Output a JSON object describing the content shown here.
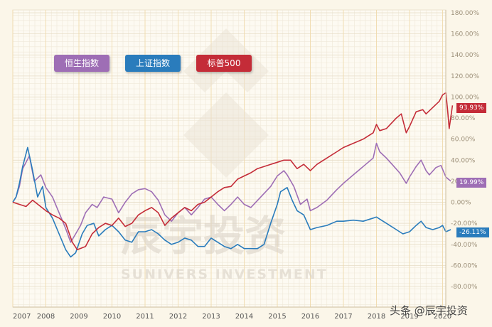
{
  "chart_data": {
    "type": "line",
    "ylim": [
      -80,
      180
    ],
    "y_ticks": [
      "180.00%",
      "160.00%",
      "140.00%",
      "120.00%",
      "100.00%",
      "80.00%",
      "60.00%",
      "40.00%",
      "20.00%",
      "0.00%",
      "-20.00%",
      "-40.00%",
      "-60.00%",
      "-80.00%"
    ],
    "x_ticks": [
      "2007",
      "2008",
      "2009",
      "2010",
      "2011",
      "2012",
      "2013",
      "2014",
      "2015",
      "2016",
      "2017",
      "2018",
      "2019",
      "2020"
    ],
    "xlim": [
      2007.0,
      2020.3
    ],
    "grid": true,
    "y_axis_position": "right",
    "series": [
      {
        "name": "恒生指数",
        "color": "#9e6eb5",
        "end_label": "19.99%",
        "points": [
          [
            2007.0,
            0
          ],
          [
            2007.1,
            5
          ],
          [
            2007.2,
            15
          ],
          [
            2007.3,
            32
          ],
          [
            2007.5,
            44
          ],
          [
            2007.65,
            20
          ],
          [
            2007.85,
            26
          ],
          [
            2008.0,
            14
          ],
          [
            2008.2,
            5
          ],
          [
            2008.4,
            -10
          ],
          [
            2008.6,
            -25
          ],
          [
            2008.75,
            -38
          ],
          [
            2008.9,
            -30
          ],
          [
            2009.05,
            -22
          ],
          [
            2009.2,
            -10
          ],
          [
            2009.4,
            -2
          ],
          [
            2009.55,
            -5
          ],
          [
            2009.75,
            5
          ],
          [
            2010.0,
            3
          ],
          [
            2010.2,
            -10
          ],
          [
            2010.4,
            0
          ],
          [
            2010.6,
            8
          ],
          [
            2010.8,
            12
          ],
          [
            2011.0,
            13
          ],
          [
            2011.2,
            10
          ],
          [
            2011.4,
            2
          ],
          [
            2011.6,
            -12
          ],
          [
            2011.8,
            -18
          ],
          [
            2012.0,
            -10
          ],
          [
            2012.2,
            -5
          ],
          [
            2012.4,
            -12
          ],
          [
            2012.6,
            -5
          ],
          [
            2012.8,
            3
          ],
          [
            2013.0,
            5
          ],
          [
            2013.2,
            -2
          ],
          [
            2013.4,
            -8
          ],
          [
            2013.6,
            -2
          ],
          [
            2013.8,
            5
          ],
          [
            2014.0,
            -2
          ],
          [
            2014.2,
            -5
          ],
          [
            2014.5,
            5
          ],
          [
            2014.8,
            15
          ],
          [
            2015.0,
            25
          ],
          [
            2015.2,
            30
          ],
          [
            2015.3,
            26
          ],
          [
            2015.5,
            15
          ],
          [
            2015.7,
            -2
          ],
          [
            2015.9,
            3
          ],
          [
            2016.0,
            -8
          ],
          [
            2016.2,
            -5
          ],
          [
            2016.5,
            2
          ],
          [
            2016.8,
            12
          ],
          [
            2017.0,
            18
          ],
          [
            2017.3,
            26
          ],
          [
            2017.6,
            34
          ],
          [
            2017.9,
            42
          ],
          [
            2018.0,
            56
          ],
          [
            2018.1,
            48
          ],
          [
            2018.3,
            42
          ],
          [
            2018.5,
            35
          ],
          [
            2018.7,
            28
          ],
          [
            2018.9,
            18
          ],
          [
            2019.0,
            24
          ],
          [
            2019.2,
            34
          ],
          [
            2019.35,
            40
          ],
          [
            2019.5,
            30
          ],
          [
            2019.6,
            26
          ],
          [
            2019.8,
            33
          ],
          [
            2019.95,
            35
          ],
          [
            2020.1,
            24
          ],
          [
            2020.25,
            20
          ]
        ]
      },
      {
        "name": "上证指数",
        "color": "#2a7cbc",
        "end_label": "-26.11%",
        "points": [
          [
            2007.0,
            0
          ],
          [
            2007.1,
            5
          ],
          [
            2007.2,
            18
          ],
          [
            2007.3,
            34
          ],
          [
            2007.45,
            52
          ],
          [
            2007.6,
            30
          ],
          [
            2007.75,
            5
          ],
          [
            2007.9,
            15
          ],
          [
            2008.0,
            -5
          ],
          [
            2008.2,
            -15
          ],
          [
            2008.4,
            -30
          ],
          [
            2008.6,
            -45
          ],
          [
            2008.75,
            -52
          ],
          [
            2008.9,
            -48
          ],
          [
            2009.1,
            -30
          ],
          [
            2009.25,
            -22
          ],
          [
            2009.45,
            -20
          ],
          [
            2009.6,
            -32
          ],
          [
            2009.8,
            -26
          ],
          [
            2010.0,
            -22
          ],
          [
            2010.2,
            -28
          ],
          [
            2010.4,
            -36
          ],
          [
            2010.6,
            -38
          ],
          [
            2010.8,
            -28
          ],
          [
            2011.0,
            -28
          ],
          [
            2011.2,
            -26
          ],
          [
            2011.4,
            -30
          ],
          [
            2011.6,
            -36
          ],
          [
            2011.8,
            -40
          ],
          [
            2012.0,
            -38
          ],
          [
            2012.2,
            -34
          ],
          [
            2012.4,
            -36
          ],
          [
            2012.6,
            -42
          ],
          [
            2012.8,
            -42
          ],
          [
            2013.0,
            -34
          ],
          [
            2013.2,
            -38
          ],
          [
            2013.4,
            -42
          ],
          [
            2013.6,
            -44
          ],
          [
            2013.8,
            -40
          ],
          [
            2014.0,
            -44
          ],
          [
            2014.2,
            -44
          ],
          [
            2014.4,
            -44
          ],
          [
            2014.6,
            -40
          ],
          [
            2014.8,
            -20
          ],
          [
            2015.0,
            -2
          ],
          [
            2015.1,
            10
          ],
          [
            2015.3,
            14
          ],
          [
            2015.45,
            2
          ],
          [
            2015.6,
            -8
          ],
          [
            2015.8,
            -12
          ],
          [
            2016.0,
            -26
          ],
          [
            2016.2,
            -24
          ],
          [
            2016.5,
            -22
          ],
          [
            2016.8,
            -18
          ],
          [
            2017.0,
            -18
          ],
          [
            2017.3,
            -17
          ],
          [
            2017.6,
            -18
          ],
          [
            2017.9,
            -15
          ],
          [
            2018.0,
            -14
          ],
          [
            2018.2,
            -18
          ],
          [
            2018.4,
            -22
          ],
          [
            2018.6,
            -26
          ],
          [
            2018.8,
            -30
          ],
          [
            2019.0,
            -28
          ],
          [
            2019.2,
            -22
          ],
          [
            2019.35,
            -18
          ],
          [
            2019.5,
            -24
          ],
          [
            2019.7,
            -26
          ],
          [
            2019.9,
            -24
          ],
          [
            2020.0,
            -22
          ],
          [
            2020.1,
            -28
          ],
          [
            2020.25,
            -26
          ]
        ]
      },
      {
        "name": "标普500",
        "color": "#c42c38",
        "end_label": "93.93%",
        "points": [
          [
            2007.0,
            0
          ],
          [
            2007.2,
            -2
          ],
          [
            2007.4,
            -4
          ],
          [
            2007.6,
            2
          ],
          [
            2007.8,
            -3
          ],
          [
            2008.0,
            -8
          ],
          [
            2008.2,
            -12
          ],
          [
            2008.4,
            -15
          ],
          [
            2008.6,
            -20
          ],
          [
            2008.8,
            -38
          ],
          [
            2008.95,
            -45
          ],
          [
            2009.2,
            -42
          ],
          [
            2009.4,
            -30
          ],
          [
            2009.6,
            -24
          ],
          [
            2009.8,
            -20
          ],
          [
            2010.0,
            -22
          ],
          [
            2010.2,
            -15
          ],
          [
            2010.4,
            -23
          ],
          [
            2010.6,
            -20
          ],
          [
            2010.8,
            -12
          ],
          [
            2011.0,
            -8
          ],
          [
            2011.2,
            -5
          ],
          [
            2011.4,
            -10
          ],
          [
            2011.6,
            -22
          ],
          [
            2011.8,
            -15
          ],
          [
            2012.0,
            -10
          ],
          [
            2012.2,
            -5
          ],
          [
            2012.4,
            -8
          ],
          [
            2012.6,
            -2
          ],
          [
            2012.8,
            0
          ],
          [
            2013.0,
            5
          ],
          [
            2013.2,
            10
          ],
          [
            2013.4,
            14
          ],
          [
            2013.6,
            15
          ],
          [
            2013.8,
            22
          ],
          [
            2014.0,
            25
          ],
          [
            2014.2,
            28
          ],
          [
            2014.4,
            32
          ],
          [
            2014.6,
            34
          ],
          [
            2014.8,
            36
          ],
          [
            2015.0,
            38
          ],
          [
            2015.2,
            40
          ],
          [
            2015.4,
            40
          ],
          [
            2015.6,
            32
          ],
          [
            2015.8,
            36
          ],
          [
            2016.0,
            30
          ],
          [
            2016.2,
            36
          ],
          [
            2016.5,
            42
          ],
          [
            2016.8,
            48
          ],
          [
            2017.0,
            52
          ],
          [
            2017.3,
            56
          ],
          [
            2017.6,
            60
          ],
          [
            2017.9,
            66
          ],
          [
            2018.0,
            74
          ],
          [
            2018.1,
            68
          ],
          [
            2018.3,
            70
          ],
          [
            2018.6,
            80
          ],
          [
            2018.75,
            84
          ],
          [
            2018.9,
            66
          ],
          [
            2019.0,
            72
          ],
          [
            2019.2,
            86
          ],
          [
            2019.4,
            88
          ],
          [
            2019.5,
            84
          ],
          [
            2019.7,
            90
          ],
          [
            2019.9,
            96
          ],
          [
            2020.0,
            102
          ],
          [
            2020.1,
            104
          ],
          [
            2020.15,
            88
          ],
          [
            2020.2,
            70
          ],
          [
            2020.3,
            92
          ]
        ]
      }
    ]
  },
  "watermark": {
    "brand_cn": "辰宇投资",
    "brand_en": "SUNIVERS INVESTMENT"
  },
  "source": "头条 @辰宇投资"
}
